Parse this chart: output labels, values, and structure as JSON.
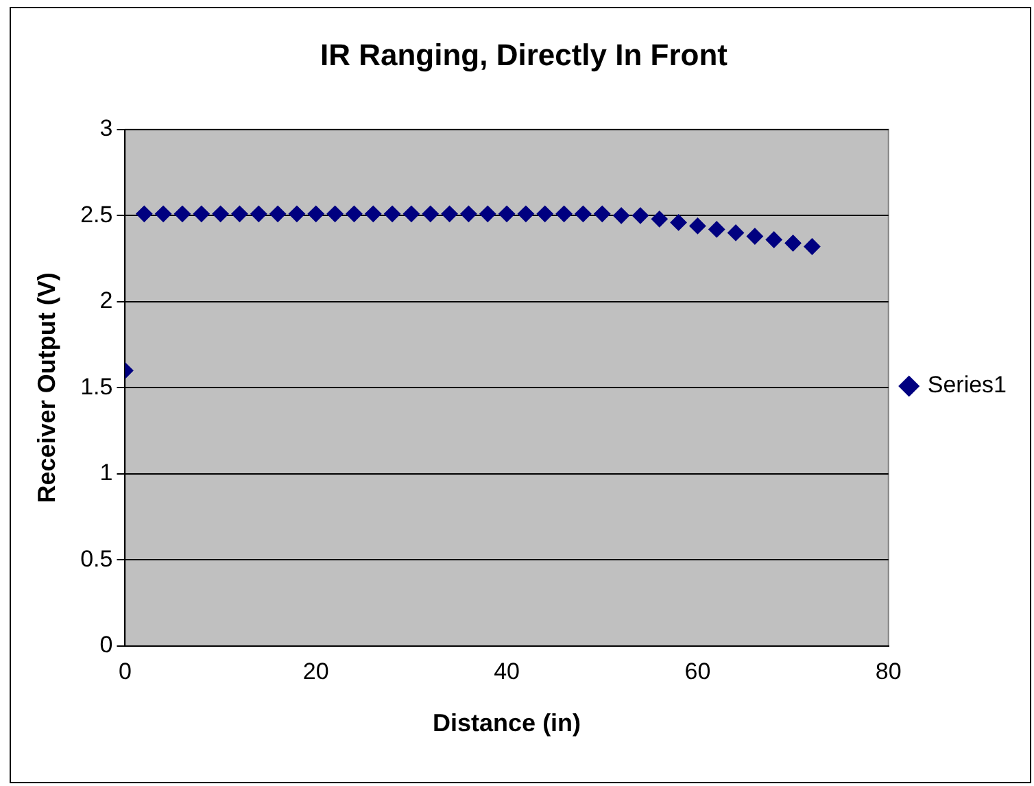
{
  "chart_data": {
    "type": "scatter",
    "title": "IR Ranging, Directly In Front",
    "xlabel": "Distance (in)",
    "ylabel": "Receiver Output (V)",
    "xlim": [
      0,
      80
    ],
    "xticks": [
      0,
      20,
      40,
      60,
      80
    ],
    "ylim": [
      0,
      3
    ],
    "yticks": [
      0,
      0.5,
      1,
      1.5,
      2,
      2.5,
      3
    ],
    "grid": "y",
    "legend": "right",
    "marker": "diamond",
    "series": [
      {
        "name": "Series1",
        "color": "#000080",
        "x": [
          0,
          2,
          4,
          6,
          8,
          10,
          12,
          14,
          16,
          18,
          20,
          22,
          24,
          26,
          28,
          30,
          32,
          34,
          36,
          38,
          40,
          42,
          44,
          46,
          48,
          50,
          52,
          54,
          56,
          58,
          60,
          62,
          64,
          66,
          68,
          70,
          72
        ],
        "values": [
          1.6,
          2.51,
          2.51,
          2.51,
          2.51,
          2.51,
          2.51,
          2.51,
          2.51,
          2.51,
          2.51,
          2.51,
          2.51,
          2.51,
          2.51,
          2.51,
          2.51,
          2.51,
          2.51,
          2.51,
          2.51,
          2.51,
          2.51,
          2.51,
          2.51,
          2.51,
          2.5,
          2.5,
          2.48,
          2.46,
          2.44,
          2.42,
          2.4,
          2.38,
          2.36,
          2.34,
          2.32
        ]
      }
    ]
  }
}
